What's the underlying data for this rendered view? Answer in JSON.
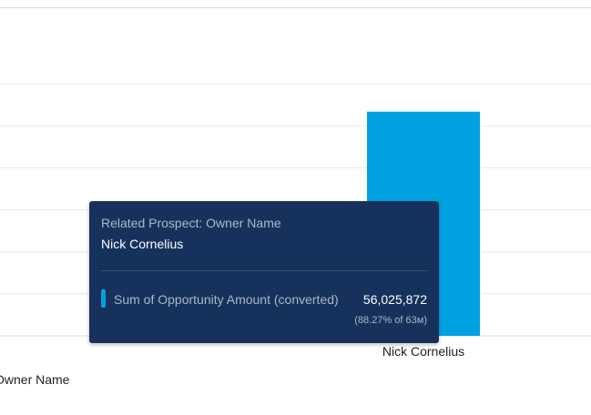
{
  "chart_data": {
    "type": "bar",
    "categories": [
      "Nick Cornelius"
    ],
    "series": [
      {
        "name": "Sum of Opportunity Amount (converted)",
        "values": [
          56025872
        ]
      }
    ],
    "xlabel": "Owner Name",
    "ylim": [
      0,
      63000000
    ],
    "grid": true,
    "bar_color": "#00a1e0"
  },
  "tooltip": {
    "dimension_label": "Related Prospect: Owner Name",
    "dimension_value": "Nick Cornelius",
    "measure_label": "Sum of Opportunity Amount (converted)",
    "measure_value": "56,025,872",
    "percent_text": "(88.27% of 63м)",
    "swatch_color": "#00a1e0"
  }
}
